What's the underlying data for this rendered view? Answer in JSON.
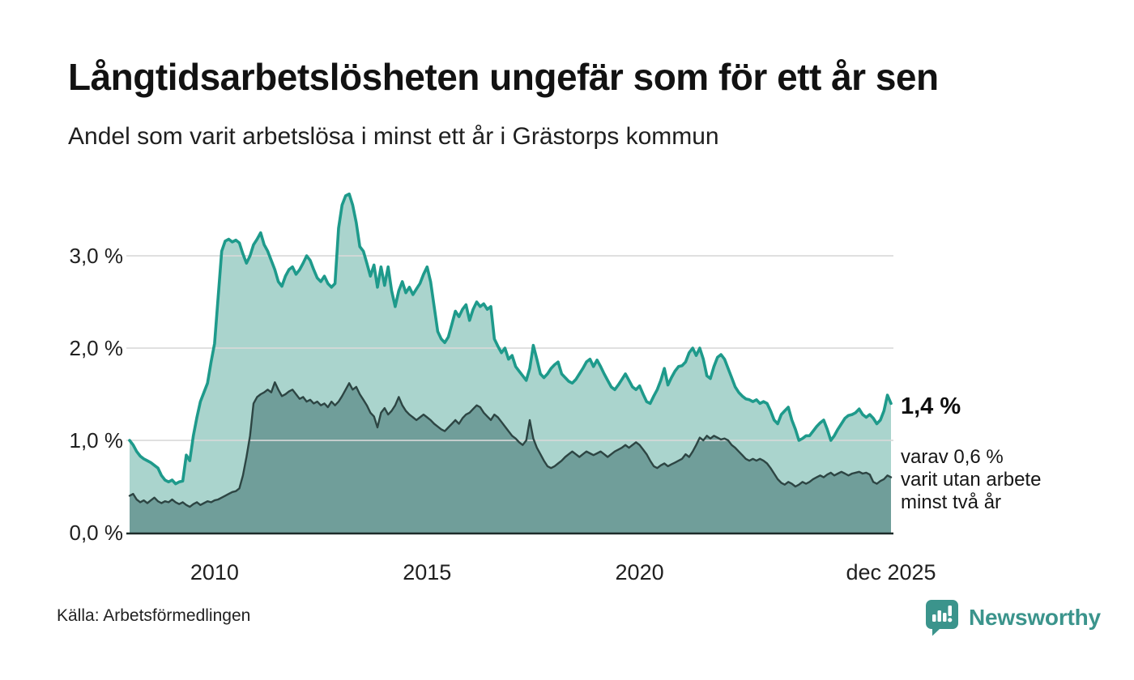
{
  "header": {
    "title": "Långtidsarbetslösheten ungefär som för ett år sen",
    "subtitle": "Andel som varit arbetslösa i minst ett år i Grästorps kommun"
  },
  "chart_data": {
    "type": "area",
    "unit": "%",
    "frequency": "monthly",
    "start": "2008-01",
    "end": "2025-12",
    "ylim": [
      0,
      3.8
    ],
    "grid": "horizontal",
    "legend_position": "inline-right-annotation",
    "series": [
      {
        "name": "Andel som varit arbetslösa i minst ett år",
        "latest_value": 1.4,
        "values": [
          1.0,
          0.95,
          0.88,
          0.83,
          0.8,
          0.78,
          0.76,
          0.73,
          0.7,
          0.62,
          0.57,
          0.55,
          0.57,
          0.53,
          0.55,
          0.56,
          0.84,
          0.78,
          1.05,
          1.25,
          1.42,
          1.52,
          1.62,
          1.85,
          2.05,
          2.55,
          3.05,
          3.16,
          3.18,
          3.15,
          3.17,
          3.14,
          3.02,
          2.92,
          3.0,
          3.12,
          3.18,
          3.25,
          3.12,
          3.05,
          2.95,
          2.85,
          2.72,
          2.67,
          2.78,
          2.85,
          2.88,
          2.8,
          2.85,
          2.92,
          3.0,
          2.95,
          2.85,
          2.76,
          2.72,
          2.78,
          2.7,
          2.66,
          2.7,
          3.3,
          3.55,
          3.65,
          3.67,
          3.55,
          3.36,
          3.1,
          3.05,
          2.92,
          2.78,
          2.9,
          2.66,
          2.88,
          2.68,
          2.88,
          2.62,
          2.45,
          2.62,
          2.72,
          2.6,
          2.66,
          2.58,
          2.64,
          2.7,
          2.8,
          2.88,
          2.72,
          2.45,
          2.18,
          2.1,
          2.06,
          2.12,
          2.26,
          2.4,
          2.34,
          2.42,
          2.47,
          2.3,
          2.42,
          2.5,
          2.45,
          2.48,
          2.42,
          2.45,
          2.1,
          2.02,
          1.95,
          2.0,
          1.88,
          1.92,
          1.8,
          1.75,
          1.7,
          1.65,
          1.78,
          2.03,
          1.88,
          1.72,
          1.68,
          1.72,
          1.78,
          1.82,
          1.85,
          1.72,
          1.68,
          1.64,
          1.62,
          1.66,
          1.72,
          1.78,
          1.85,
          1.88,
          1.8,
          1.87,
          1.8,
          1.72,
          1.65,
          1.58,
          1.55,
          1.6,
          1.66,
          1.72,
          1.65,
          1.58,
          1.55,
          1.59,
          1.5,
          1.42,
          1.4,
          1.48,
          1.55,
          1.65,
          1.78,
          1.6,
          1.68,
          1.75,
          1.8,
          1.81,
          1.85,
          1.95,
          2.0,
          1.92,
          2.0,
          1.88,
          1.7,
          1.67,
          1.8,
          1.9,
          1.93,
          1.88,
          1.78,
          1.68,
          1.58,
          1.52,
          1.48,
          1.45,
          1.44,
          1.42,
          1.44,
          1.4,
          1.42,
          1.4,
          1.32,
          1.22,
          1.18,
          1.28,
          1.32,
          1.36,
          1.22,
          1.12,
          1.0,
          1.02,
          1.05,
          1.05,
          1.1,
          1.15,
          1.19,
          1.22,
          1.12,
          1.0,
          1.05,
          1.12,
          1.18,
          1.24,
          1.27,
          1.28,
          1.3,
          1.34,
          1.28,
          1.25,
          1.28,
          1.24,
          1.18,
          1.22,
          1.32,
          1.49,
          1.4
        ]
      },
      {
        "name": "varav: andel som varit utan arbete minst två år",
        "latest_value": 0.6,
        "values": [
          0.4,
          0.42,
          0.36,
          0.33,
          0.35,
          0.32,
          0.35,
          0.38,
          0.34,
          0.32,
          0.34,
          0.33,
          0.36,
          0.33,
          0.31,
          0.33,
          0.3,
          0.28,
          0.31,
          0.33,
          0.3,
          0.32,
          0.34,
          0.33,
          0.35,
          0.36,
          0.38,
          0.4,
          0.42,
          0.44,
          0.45,
          0.48,
          0.62,
          0.82,
          1.05,
          1.4,
          1.47,
          1.5,
          1.52,
          1.55,
          1.52,
          1.63,
          1.55,
          1.48,
          1.5,
          1.53,
          1.55,
          1.5,
          1.45,
          1.47,
          1.42,
          1.44,
          1.4,
          1.42,
          1.38,
          1.4,
          1.36,
          1.42,
          1.38,
          1.42,
          1.48,
          1.55,
          1.62,
          1.55,
          1.58,
          1.5,
          1.44,
          1.38,
          1.3,
          1.26,
          1.14,
          1.3,
          1.35,
          1.28,
          1.32,
          1.38,
          1.47,
          1.38,
          1.32,
          1.28,
          1.25,
          1.22,
          1.25,
          1.28,
          1.25,
          1.22,
          1.18,
          1.15,
          1.12,
          1.1,
          1.14,
          1.18,
          1.22,
          1.18,
          1.24,
          1.28,
          1.3,
          1.34,
          1.38,
          1.36,
          1.3,
          1.26,
          1.22,
          1.28,
          1.25,
          1.2,
          1.15,
          1.1,
          1.05,
          1.02,
          0.98,
          0.95,
          1.0,
          1.22,
          1.02,
          0.92,
          0.85,
          0.78,
          0.72,
          0.7,
          0.72,
          0.75,
          0.78,
          0.82,
          0.85,
          0.88,
          0.85,
          0.82,
          0.85,
          0.88,
          0.86,
          0.84,
          0.86,
          0.88,
          0.85,
          0.82,
          0.85,
          0.88,
          0.9,
          0.92,
          0.95,
          0.92,
          0.95,
          0.98,
          0.95,
          0.9,
          0.85,
          0.78,
          0.72,
          0.7,
          0.73,
          0.75,
          0.72,
          0.74,
          0.76,
          0.78,
          0.8,
          0.85,
          0.82,
          0.88,
          0.95,
          1.03,
          1.0,
          1.05,
          1.02,
          1.05,
          1.03,
          1.01,
          1.02,
          1.0,
          0.95,
          0.92,
          0.88,
          0.84,
          0.8,
          0.78,
          0.8,
          0.78,
          0.8,
          0.78,
          0.75,
          0.7,
          0.64,
          0.58,
          0.54,
          0.52,
          0.55,
          0.53,
          0.5,
          0.52,
          0.55,
          0.53,
          0.55,
          0.58,
          0.6,
          0.62,
          0.6,
          0.63,
          0.65,
          0.62,
          0.64,
          0.66,
          0.64,
          0.62,
          0.64,
          0.65,
          0.66,
          0.64,
          0.65,
          0.63,
          0.55,
          0.53,
          0.56,
          0.58,
          0.62,
          0.6
        ]
      }
    ],
    "y_ticks": [
      {
        "value": 0,
        "label": "0,0 %"
      },
      {
        "value": 1,
        "label": "1,0 %"
      },
      {
        "value": 2,
        "label": "2,0 %"
      },
      {
        "value": 3,
        "label": "3,0 %"
      }
    ],
    "x_ticks": [
      {
        "month_index": 24,
        "label": "2010"
      },
      {
        "month_index": 84,
        "label": "2015"
      },
      {
        "month_index": 144,
        "label": "2020"
      },
      {
        "month_index": 215,
        "label": "dec 2025"
      }
    ],
    "annotations": {
      "latest_total": "1,4 %",
      "subset_lines": [
        "varav 0,6 %",
        "varit utan arbete",
        "minst två år"
      ]
    },
    "colors": {
      "line_total": "#1e9a8b",
      "fill_total": "#aad4cd",
      "line_subset": "#2d4543",
      "fill_subset": "#709e9a",
      "grid": "#d9d9d9",
      "axis": "#1d2b29"
    }
  },
  "footer": {
    "source": "Källa: Arbetsförmedlingen",
    "brand": "Newsworthy",
    "brand_color": "#3b948c"
  }
}
